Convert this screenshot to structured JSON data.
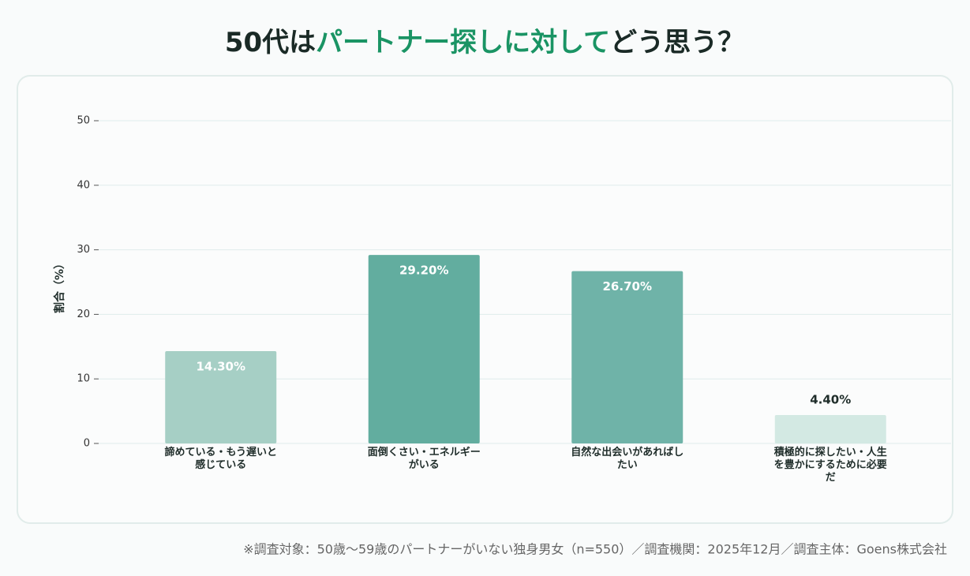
{
  "chart_data": {
    "type": "bar",
    "title": [
      {
        "text": "50代は",
        "color": "#1a2a26"
      },
      {
        "text": "パートナー探しに対して",
        "color": "#1a9464"
      },
      {
        "text": "どう思う？",
        "color": "#1a2a26"
      }
    ],
    "ylabel": "割合（%）",
    "categories": [
      "諦めている・もう遅いと感じている",
      "面倒くさい・エネルギーがいる",
      "自然な出会いがあればしたい",
      "積極的に探したい・人生を豊かにするために必要だ"
    ],
    "values": [
      14.3,
      29.2,
      26.7,
      4.4
    ],
    "value_labels": [
      "14.30%",
      "29.20%",
      "26.70%",
      "4.40%"
    ],
    "colors": [
      "#a6cfc5",
      "#62ad9f",
      "#6fb3a8",
      "#d3e9e3"
    ],
    "ylim": [
      0,
      50
    ],
    "yticks": [
      0,
      10,
      20,
      30,
      40,
      50
    ],
    "grid": true,
    "footnote": "※調査対象：50歳〜59歳のパートナーがいない独身男女（n=550）／調査機関：2025年12月／調査主体：Goens株式会社"
  }
}
